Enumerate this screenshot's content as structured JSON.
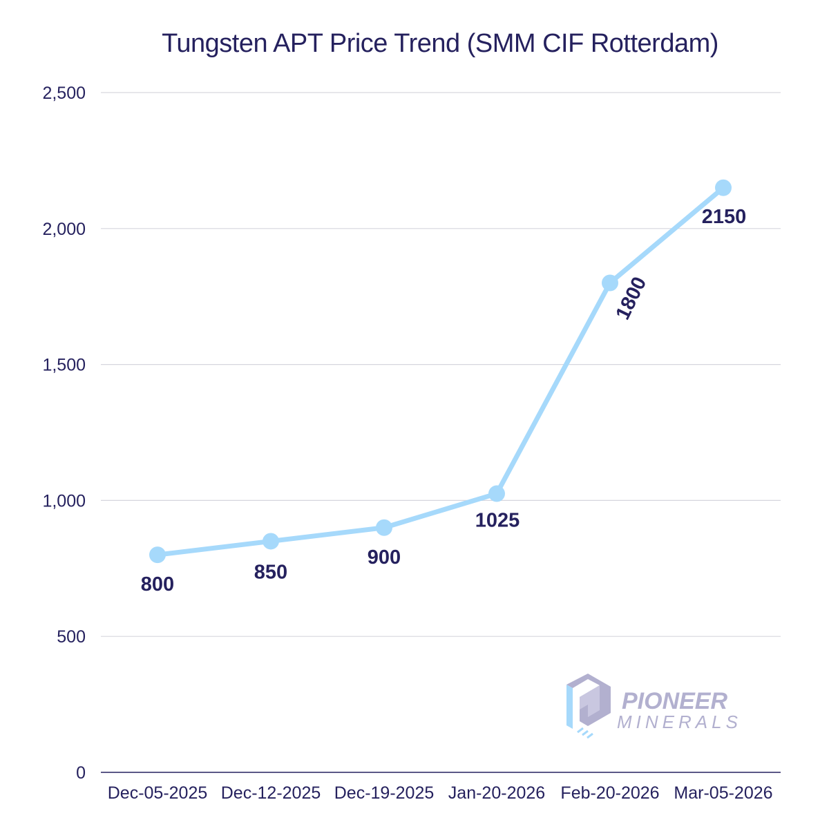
{
  "colors": {
    "series": "#a6d9fb",
    "text": "#25215e",
    "grid": "#d6d6de",
    "logo_gray": "#b2b0cf",
    "logo_blue": "#a6d9fb"
  },
  "chart_data": {
    "type": "line",
    "title": "Tungsten APT Price Trend (SMM CIF Rotterdam)",
    "xlabel": "",
    "ylabel": "",
    "categories": [
      "Dec-05-2025",
      "Dec-12-2025",
      "Dec-19-2025",
      "Jan-20-2026",
      "Feb-20-2026",
      "Mar-05-2026"
    ],
    "series": [
      {
        "name": "Tungsten APT Price",
        "values": [
          800,
          850,
          900,
          1025,
          1800,
          2150
        ]
      }
    ],
    "data_labels": [
      "800",
      "850",
      "900",
      "1025",
      "1800",
      "2150"
    ],
    "ylim": [
      0,
      2500
    ],
    "yticks": [
      0,
      500,
      1000,
      1500,
      2000,
      2500
    ],
    "ytick_labels": [
      "0",
      "500",
      "1,000",
      "1,500",
      "2,000",
      "2,500"
    ],
    "grid": true,
    "legend": "none"
  },
  "logo": {
    "word1": "PIONEER",
    "word2": "MINERALS"
  }
}
